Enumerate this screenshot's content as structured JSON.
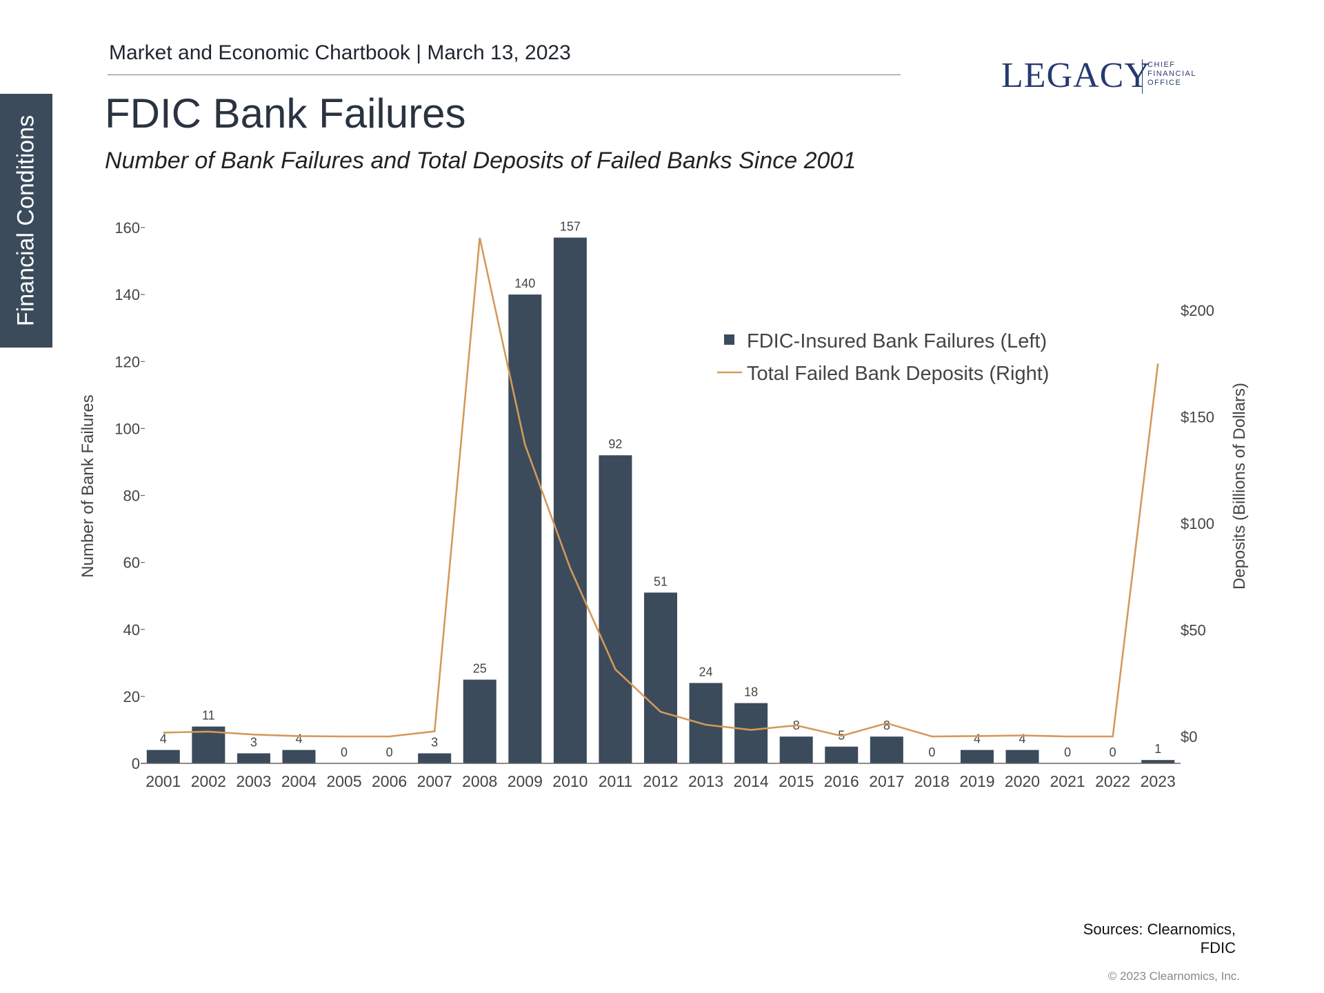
{
  "side_tab": {
    "label": "Financial Conditions"
  },
  "header": {
    "text": "Market and Economic Chartbook | March 13, 2023"
  },
  "logo": {
    "name": "LEGACY",
    "sub": [
      "CHIEF",
      "FINANCIAL",
      "OFFICE"
    ]
  },
  "colors": {
    "bar": "#3b4b5b",
    "line": "#d4995a",
    "side_tab": "#3b4b5b",
    "logo": "#253a6e"
  },
  "chart_data": {
    "type": "bar",
    "title": "FDIC Bank Failures",
    "subtitle": "Number of Bank Failures and Total Deposits of Failed Banks Since 2001",
    "categories": [
      "2001",
      "2002",
      "2003",
      "2004",
      "2005",
      "2006",
      "2007",
      "2008",
      "2009",
      "2010",
      "2011",
      "2012",
      "2013",
      "2014",
      "2015",
      "2016",
      "2017",
      "2018",
      "2019",
      "2020",
      "2021",
      "2022",
      "2023"
    ],
    "series": [
      {
        "name": "FDIC-Insured Bank Failures (Left)",
        "type": "bar",
        "axis": "left",
        "values": [
          4,
          11,
          3,
          4,
          0,
          0,
          3,
          25,
          140,
          157,
          92,
          51,
          24,
          18,
          8,
          5,
          8,
          0,
          4,
          4,
          0,
          0,
          1
        ]
      },
      {
        "name": "Total Failed Bank Deposits (Right)",
        "type": "line",
        "axis": "right",
        "values": [
          1.8,
          2.3,
          0.9,
          0.2,
          0,
          0,
          2.4,
          234,
          137,
          79,
          31.5,
          11.6,
          5.5,
          3.1,
          5.2,
          0.3,
          6.2,
          0,
          0.2,
          0.5,
          0,
          0,
          175
        ]
      }
    ],
    "ylabel": "Number of Bank Failures",
    "ylim": [
      0,
      160
    ],
    "yticks": [
      0,
      20,
      40,
      60,
      80,
      100,
      120,
      140,
      160
    ],
    "y2label": "Deposits (Billions of Dollars)",
    "y2ticks": [
      {
        "value": 0,
        "label": "$0"
      },
      {
        "value": 50,
        "label": "$50"
      },
      {
        "value": 100,
        "label": "$100"
      },
      {
        "value": 150,
        "label": "$150"
      },
      {
        "value": 200,
        "label": "$200"
      }
    ],
    "legend_position": "top-right",
    "grid": false
  },
  "footer": {
    "sources": [
      "Sources: Clearnomics,",
      "FDIC"
    ],
    "copyright": "© 2023 Clearnomics, Inc."
  }
}
